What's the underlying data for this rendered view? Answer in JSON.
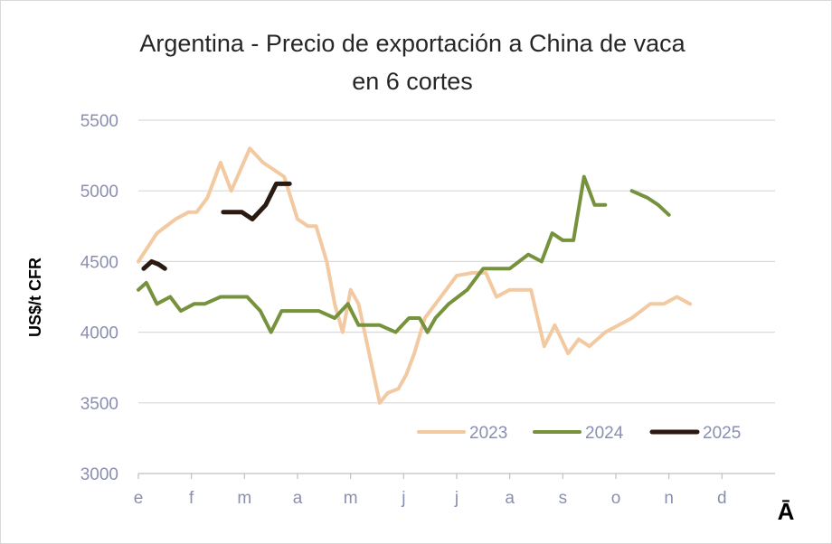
{
  "chart_data": {
    "type": "line",
    "title_line1": "Argentina - Precio de exportación a China de vaca",
    "title_line2": "en 6 cortes",
    "ylabel": "US$/t CFR",
    "xlabel": "",
    "corner_label": "Ā",
    "ylim": [
      3000,
      5500
    ],
    "yticks": [
      3000,
      3500,
      4000,
      4500,
      5000,
      5500
    ],
    "x_range": [
      0,
      12
    ],
    "month_ticks": [
      {
        "x": 0,
        "label": "e"
      },
      {
        "x": 1,
        "label": "f"
      },
      {
        "x": 2,
        "label": "m"
      },
      {
        "x": 3,
        "label": "a"
      },
      {
        "x": 4,
        "label": "m"
      },
      {
        "x": 5,
        "label": "j"
      },
      {
        "x": 6,
        "label": "j"
      },
      {
        "x": 7,
        "label": "a"
      },
      {
        "x": 8,
        "label": "s"
      },
      {
        "x": 9,
        "label": "o"
      },
      {
        "x": 10,
        "label": "n"
      },
      {
        "x": 11,
        "label": "d"
      }
    ],
    "grid": true,
    "legend_position": "bottom-right",
    "series": [
      {
        "name": "2023",
        "color": "#f2c9a0",
        "segments": [
          [
            [
              0.0,
              4500
            ],
            [
              0.35,
              4700
            ],
            [
              0.7,
              4800
            ],
            [
              0.95,
              4850
            ],
            [
              1.1,
              4850
            ],
            [
              1.3,
              4950
            ],
            [
              1.55,
              5200
            ],
            [
              1.75,
              5000
            ],
            [
              2.1,
              5300
            ],
            [
              2.35,
              5200
            ],
            [
              2.75,
              5100
            ],
            [
              3.0,
              4800
            ],
            [
              3.2,
              4750
            ],
            [
              3.35,
              4750
            ],
            [
              3.55,
              4500
            ],
            [
              3.7,
              4200
            ],
            [
              3.85,
              4000
            ],
            [
              4.0,
              4300
            ],
            [
              4.15,
              4200
            ],
            [
              4.35,
              3850
            ],
            [
              4.55,
              3500
            ],
            [
              4.7,
              3570
            ],
            [
              4.9,
              3600
            ],
            [
              5.05,
              3700
            ],
            [
              5.2,
              3850
            ],
            [
              5.4,
              4100
            ],
            [
              5.8,
              4300
            ],
            [
              6.0,
              4400
            ],
            [
              6.3,
              4420
            ],
            [
              6.55,
              4420
            ],
            [
              6.75,
              4250
            ],
            [
              7.0,
              4300
            ],
            [
              7.4,
              4300
            ],
            [
              7.65,
              3900
            ],
            [
              7.85,
              4050
            ],
            [
              8.1,
              3850
            ],
            [
              8.3,
              3950
            ],
            [
              8.5,
              3900
            ],
            [
              8.8,
              4000
            ],
            [
              9.3,
              4100
            ],
            [
              9.65,
              4200
            ],
            [
              9.9,
              4200
            ],
            [
              10.15,
              4250
            ],
            [
              10.4,
              4200
            ]
          ]
        ]
      },
      {
        "name": "2024",
        "color": "#76923c",
        "segments": [
          [
            [
              0.0,
              4300
            ],
            [
              0.15,
              4350
            ],
            [
              0.35,
              4200
            ],
            [
              0.6,
              4250
            ],
            [
              0.8,
              4150
            ],
            [
              1.05,
              4200
            ],
            [
              1.25,
              4200
            ],
            [
              1.55,
              4250
            ],
            [
              2.05,
              4250
            ],
            [
              2.3,
              4150
            ],
            [
              2.5,
              4000
            ],
            [
              2.7,
              4150
            ],
            [
              3.0,
              4150
            ],
            [
              3.4,
              4150
            ],
            [
              3.7,
              4100
            ],
            [
              3.95,
              4200
            ],
            [
              4.15,
              4050
            ],
            [
              4.55,
              4050
            ],
            [
              4.85,
              4000
            ],
            [
              5.1,
              4100
            ],
            [
              5.3,
              4100
            ],
            [
              5.45,
              4000
            ],
            [
              5.6,
              4100
            ],
            [
              5.85,
              4200
            ],
            [
              6.2,
              4300
            ],
            [
              6.5,
              4450
            ],
            [
              6.7,
              4450
            ],
            [
              7.0,
              4450
            ],
            [
              7.35,
              4550
            ],
            [
              7.6,
              4500
            ],
            [
              7.8,
              4700
            ],
            [
              8.0,
              4650
            ],
            [
              8.2,
              4650
            ],
            [
              8.4,
              5100
            ],
            [
              8.6,
              4900
            ],
            [
              8.8,
              4900
            ]
          ],
          [
            [
              9.3,
              5000
            ],
            [
              9.6,
              4950
            ],
            [
              9.8,
              4900
            ],
            [
              10.0,
              4830
            ]
          ]
        ]
      },
      {
        "name": "2025",
        "color": "#2b1a12",
        "segments": [
          [
            [
              0.1,
              4450
            ],
            [
              0.25,
              4500
            ],
            [
              0.38,
              4480
            ],
            [
              0.5,
              4450
            ]
          ],
          [
            [
              1.6,
              4850
            ],
            [
              1.95,
              4850
            ],
            [
              2.15,
              4800
            ],
            [
              2.4,
              4900
            ],
            [
              2.6,
              5050
            ],
            [
              2.85,
              5050
            ]
          ]
        ]
      }
    ]
  }
}
